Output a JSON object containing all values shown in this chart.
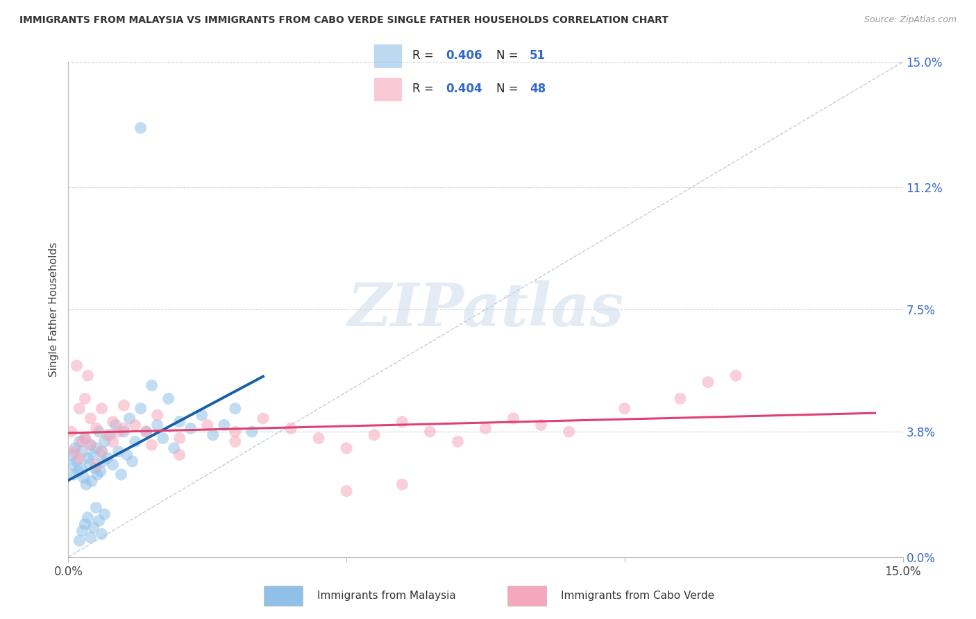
{
  "title": "IMMIGRANTS FROM MALAYSIA VS IMMIGRANTS FROM CABO VERDE SINGLE FATHER HOUSEHOLDS CORRELATION CHART",
  "source": "Source: ZipAtlas.com",
  "ylabel": "Single Father Households",
  "xlim": [
    0.0,
    15.0
  ],
  "ylim": [
    0.0,
    15.0
  ],
  "right_axis_ticks": [
    0.0,
    3.8,
    7.5,
    11.2,
    15.0
  ],
  "right_axis_labels": [
    "0.0%",
    "3.8%",
    "7.5%",
    "11.2%",
    "15.0%"
  ],
  "x_tick_labels": [
    "0.0%",
    "",
    "",
    "",
    "15.0%"
  ],
  "x_ticks": [
    0.0,
    3.75,
    7.5,
    11.25,
    15.0
  ],
  "malaysia_R": "0.406",
  "malaysia_N": "51",
  "caboverde_R": "0.404",
  "caboverde_N": "48",
  "malaysia_color": "#90c0e8",
  "caboverde_color": "#f5a8bc",
  "malaysia_line_color": "#1a5fa5",
  "caboverde_line_color": "#e04070",
  "diagonal_color": "#b8c4d0",
  "watermark_text": "ZIPatlas",
  "watermark_color": "#c8d8ec",
  "legend_label_malaysia": "Immigrants from Malaysia",
  "legend_label_caboverde": "Immigrants from Cabo Verde",
  "legend_r_n_color": "#3366cc",
  "grid_color": "#cccccc",
  "malaysia_x": [
    0.05,
    0.08,
    0.1,
    0.12,
    0.15,
    0.18,
    0.2,
    0.22,
    0.25,
    0.28,
    0.3,
    0.32,
    0.35,
    0.38,
    0.4,
    0.42,
    0.45,
    0.48,
    0.5,
    0.52,
    0.55,
    0.58,
    0.6,
    0.62,
    0.65,
    0.7,
    0.75,
    0.8,
    0.85,
    0.9,
    0.95,
    1.0,
    1.05,
    1.1,
    1.15,
    1.2,
    1.3,
    1.4,
    1.5,
    1.6,
    1.7,
    1.8,
    1.9,
    2.0,
    2.2,
    2.4,
    2.6,
    2.8,
    3.0,
    3.3,
    1.3
  ],
  "malaysia_y": [
    2.8,
    3.1,
    2.5,
    3.3,
    2.9,
    2.6,
    3.5,
    2.7,
    3.2,
    2.4,
    3.6,
    2.2,
    3.0,
    2.8,
    3.4,
    2.3,
    3.1,
    2.7,
    3.3,
    2.5,
    3.8,
    2.6,
    3.2,
    2.9,
    3.5,
    3.0,
    3.7,
    2.8,
    4.0,
    3.2,
    2.5,
    3.8,
    3.1,
    4.2,
    2.9,
    3.5,
    4.5,
    3.8,
    5.2,
    4.0,
    3.6,
    4.8,
    3.3,
    4.1,
    3.9,
    4.3,
    3.7,
    4.0,
    4.5,
    3.8,
    13.0
  ],
  "malaysia_low_y": [
    0.5,
    0.8,
    1.0,
    1.2,
    0.6,
    0.9,
    1.5,
    1.1,
    0.7,
    1.3
  ],
  "malaysia_low_x": [
    0.2,
    0.25,
    0.3,
    0.35,
    0.4,
    0.45,
    0.5,
    0.55,
    0.6,
    0.65
  ],
  "caboverde_x": [
    0.05,
    0.1,
    0.15,
    0.2,
    0.25,
    0.3,
    0.35,
    0.4,
    0.5,
    0.6,
    0.7,
    0.8,
    0.9,
    1.0,
    1.2,
    1.4,
    1.6,
    2.0,
    2.5,
    3.0,
    3.5,
    4.0,
    4.5,
    5.0,
    5.5,
    6.0,
    6.5,
    7.0,
    7.5,
    8.0,
    9.0,
    10.0,
    11.0,
    12.0,
    0.2,
    0.3,
    0.4,
    0.5,
    0.6,
    0.8,
    1.0,
    1.5,
    2.0,
    3.0,
    5.0,
    6.0,
    8.5,
    11.5
  ],
  "caboverde_y": [
    3.8,
    3.2,
    5.8,
    4.5,
    3.5,
    4.8,
    5.5,
    4.2,
    3.9,
    4.5,
    3.7,
    4.1,
    3.8,
    4.6,
    4.0,
    3.8,
    4.3,
    3.6,
    4.0,
    3.8,
    4.2,
    3.9,
    3.6,
    3.3,
    3.7,
    4.1,
    3.8,
    3.5,
    3.9,
    4.2,
    3.8,
    4.5,
    4.8,
    5.5,
    3.0,
    3.6,
    3.4,
    2.8,
    3.2,
    3.5,
    3.9,
    3.4,
    3.1,
    3.5,
    2.0,
    2.2,
    4.0,
    5.3
  ]
}
